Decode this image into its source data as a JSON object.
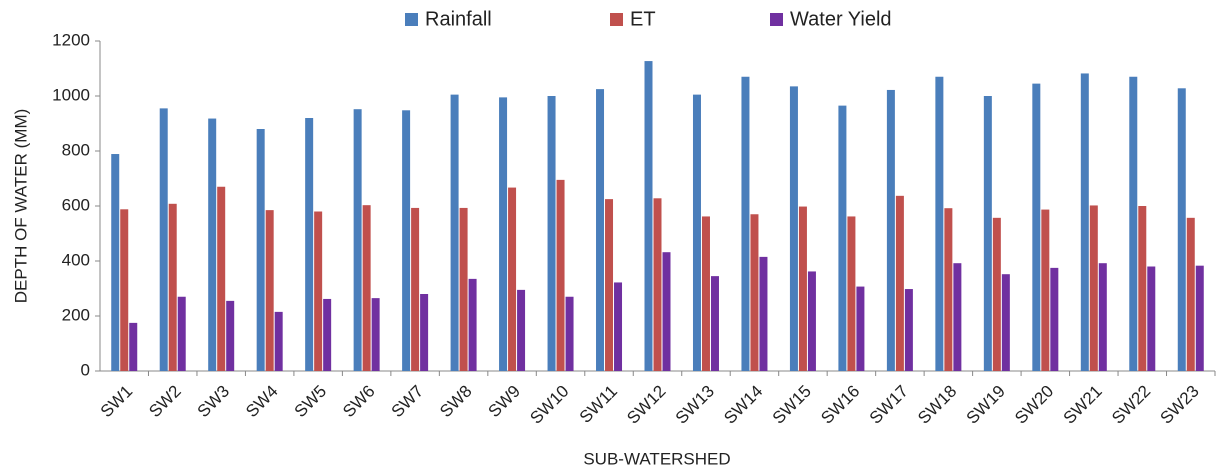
{
  "chart_data": {
    "type": "bar",
    "categories": [
      "SW1",
      "SW2",
      "SW3",
      "SW4",
      "SW5",
      "SW6",
      "SW7",
      "SW8",
      "SW9",
      "SW10",
      "SW11",
      "SW12",
      "SW13",
      "SW14",
      "SW15",
      "SW16",
      "SW17",
      "SW18",
      "SW19",
      "SW20",
      "SW21",
      "SW22",
      "SW23"
    ],
    "series": [
      {
        "name": "Rainfall",
        "color": "#4a7ebb",
        "values": [
          789,
          955,
          918,
          880,
          920,
          952,
          948,
          1005,
          995,
          1000,
          1025,
          1127,
          1005,
          1070,
          1035,
          965,
          1022,
          1070,
          1000,
          1045,
          1082,
          1070,
          1028
        ]
      },
      {
        "name": "ET",
        "color": "#c0504d",
        "values": [
          588,
          608,
          670,
          585,
          580,
          603,
          593,
          593,
          667,
          695,
          625,
          628,
          562,
          570,
          598,
          562,
          637,
          592,
          557,
          587,
          602,
          600,
          557
        ]
      },
      {
        "name": "Water Yield",
        "color": "#7030a0",
        "values": [
          175,
          270,
          255,
          215,
          262,
          265,
          280,
          335,
          295,
          270,
          322,
          432,
          345,
          415,
          362,
          307,
          298,
          392,
          352,
          375,
          392,
          380,
          383
        ]
      }
    ],
    "y_label": "DEPTH OF WATER (MM)",
    "x_label": "SUB-WATERSHED",
    "ylim": [
      0,
      1200
    ],
    "yticks": [
      0,
      200,
      400,
      600,
      800,
      1000,
      1200
    ],
    "yticks_labels_note_unused": null,
    "grid": false,
    "legend": "top"
  }
}
